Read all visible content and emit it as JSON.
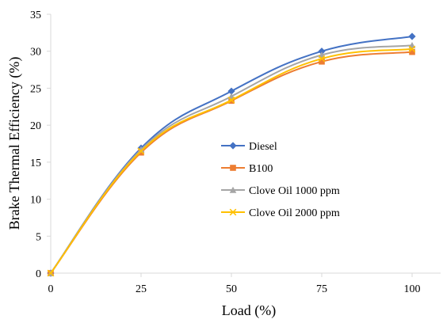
{
  "chart_data": {
    "type": "line",
    "title": "",
    "xlabel": "Load (%)",
    "ylabel": "Brake Thermal Efficiency (%)",
    "x": [
      0,
      25,
      50,
      75,
      100
    ],
    "xlim": [
      0,
      100
    ],
    "ylim": [
      0,
      35
    ],
    "xticks": [
      0,
      25,
      50,
      75,
      100
    ],
    "yticks": [
      0,
      5,
      10,
      15,
      20,
      25,
      30,
      35
    ],
    "grid": false,
    "legend_position": "center-right",
    "series": [
      {
        "name": "Diesel",
        "values": [
          0,
          16.9,
          24.6,
          30.0,
          32.0
        ],
        "color": "#4472C4",
        "marker": "diamond"
      },
      {
        "name": "B100",
        "values": [
          0,
          16.3,
          23.3,
          28.6,
          29.9
        ],
        "color": "#ED7D31",
        "marker": "square"
      },
      {
        "name": "Clove Oil 1000 ppm",
        "values": [
          0,
          16.7,
          23.9,
          29.5,
          30.8
        ],
        "color": "#A5A5A5",
        "marker": "triangle"
      },
      {
        "name": "Clove Oil 2000 ppm",
        "values": [
          0,
          16.5,
          23.4,
          29.0,
          30.3
        ],
        "color": "#FFC000",
        "marker": "x"
      }
    ]
  }
}
